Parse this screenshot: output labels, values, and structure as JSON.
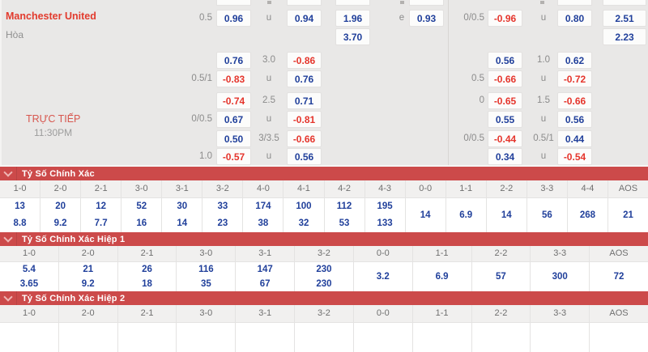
{
  "colors": {
    "band_red": "#cc4a4a",
    "odds_blue": "#21409b",
    "odds_red": "#e5352c",
    "team_red": "#e23b2e",
    "live_red": "#d7574f",
    "label_gray": "#8b8b8b"
  },
  "match": {
    "home_team": "Manchester United",
    "draw_label": "Hòa",
    "live_label": "TRỰC TIẾP",
    "time": "11:30PM"
  },
  "top_odds": {
    "rows": [
      {
        "cells": [
          {
            "col": "L1",
            "text": "0.5"
          },
          {
            "col": "B1",
            "text": "0.96",
            "color": "blue"
          },
          {
            "col": "L2",
            "text": "u"
          },
          {
            "col": "B2",
            "text": "0.94",
            "color": "blue"
          },
          {
            "col": "B3",
            "text": "1.96",
            "color": "blue"
          },
          {
            "col": "L3",
            "text": "e"
          },
          {
            "col": "B4",
            "text": "0.93",
            "color": "blue"
          },
          {
            "col": "RL1",
            "text": "0/0.5"
          },
          {
            "col": "RB1",
            "text": "-0.96",
            "color": "red"
          },
          {
            "col": "RL2",
            "text": "u"
          },
          {
            "col": "RB2",
            "text": "0.80",
            "color": "blue"
          },
          {
            "col": "RB3",
            "text": "2.51",
            "color": "blue"
          }
        ]
      },
      {
        "cells": [
          {
            "col": "B3",
            "text": "3.70",
            "color": "blue"
          },
          {
            "col": "RB3",
            "text": "2.23",
            "color": "blue"
          }
        ]
      },
      {
        "cells": [
          {
            "col": "B1",
            "text": "0.76",
            "color": "blue"
          },
          {
            "col": "L2",
            "text": "3.0"
          },
          {
            "col": "B2",
            "text": "-0.86",
            "color": "red"
          },
          {
            "col": "RB1",
            "text": "0.56",
            "color": "blue"
          },
          {
            "col": "RL2",
            "text": "1.0"
          },
          {
            "col": "RB2",
            "text": "0.62",
            "color": "blue"
          }
        ]
      },
      {
        "cells": [
          {
            "col": "L1",
            "text": "0.5/1"
          },
          {
            "col": "B1",
            "text": "-0.83",
            "color": "red"
          },
          {
            "col": "L2",
            "text": "u"
          },
          {
            "col": "B2",
            "text": "0.76",
            "color": "blue"
          },
          {
            "col": "RL1",
            "text": "0.5"
          },
          {
            "col": "RB1",
            "text": "-0.66",
            "color": "red"
          },
          {
            "col": "RL2",
            "text": "u"
          },
          {
            "col": "RB2",
            "text": "-0.72",
            "color": "red"
          }
        ]
      },
      {
        "cells": [
          {
            "col": "B1",
            "text": "-0.74",
            "color": "red"
          },
          {
            "col": "L2",
            "text": "2.5"
          },
          {
            "col": "B2",
            "text": "0.71",
            "color": "blue"
          },
          {
            "col": "RL1",
            "text": "0"
          },
          {
            "col": "RB1",
            "text": "-0.65",
            "color": "red"
          },
          {
            "col": "RL2",
            "text": "1.5"
          },
          {
            "col": "RB2",
            "text": "-0.66",
            "color": "red"
          }
        ]
      },
      {
        "cells": [
          {
            "col": "L1",
            "text": "0/0.5"
          },
          {
            "col": "B1",
            "text": "0.67",
            "color": "blue"
          },
          {
            "col": "L2",
            "text": "u"
          },
          {
            "col": "B2",
            "text": "-0.81",
            "color": "red"
          },
          {
            "col": "RB1",
            "text": "0.55",
            "color": "blue"
          },
          {
            "col": "RL2",
            "text": "u"
          },
          {
            "col": "RB2",
            "text": "0.56",
            "color": "blue"
          }
        ]
      },
      {
        "cells": [
          {
            "col": "B1",
            "text": "0.50",
            "color": "blue"
          },
          {
            "col": "L2",
            "text": "3/3.5"
          },
          {
            "col": "B2",
            "text": "-0.66",
            "color": "red"
          },
          {
            "col": "RL1",
            "text": "0/0.5"
          },
          {
            "col": "RB1",
            "text": "-0.44",
            "color": "red"
          },
          {
            "col": "RL2",
            "text": "0.5/1"
          },
          {
            "col": "RB2",
            "text": "0.44",
            "color": "blue"
          }
        ]
      },
      {
        "cells": [
          {
            "col": "L1",
            "text": "1.0"
          },
          {
            "col": "B1",
            "text": "-0.57",
            "color": "red"
          },
          {
            "col": "L2",
            "text": "u"
          },
          {
            "col": "B2",
            "text": "0.56",
            "color": "blue"
          },
          {
            "col": "RB1",
            "text": "0.34",
            "color": "blue"
          },
          {
            "col": "RL2",
            "text": "u"
          },
          {
            "col": "RB2",
            "text": "-0.54",
            "color": "red"
          }
        ]
      }
    ]
  },
  "score_tables": [
    {
      "title": "Tỷ Số Chính Xác",
      "headers": [
        "1-0",
        "2-0",
        "2-1",
        "3-0",
        "3-1",
        "3-2",
        "4-0",
        "4-1",
        "4-2",
        "4-3",
        "0-0",
        "1-1",
        "2-2",
        "3-3",
        "4-4",
        "AOS"
      ],
      "row1": [
        "13",
        "20",
        "12",
        "52",
        "30",
        "33",
        "174",
        "100",
        "112",
        "195"
      ],
      "row2": [
        "8.8",
        "9.2",
        "7.7",
        "16",
        "14",
        "23",
        "38",
        "32",
        "53",
        "133"
      ],
      "span_start": 10,
      "span_values": [
        "14",
        "6.9",
        "14",
        "56",
        "268",
        "21"
      ]
    },
    {
      "title": "Tỷ Số Chính Xác Hiệp 1",
      "headers": [
        "1-0",
        "2-0",
        "2-1",
        "3-0",
        "3-1",
        "3-2",
        "0-0",
        "1-1",
        "2-2",
        "3-3",
        "AOS"
      ],
      "row1": [
        "5.4",
        "21",
        "26",
        "116",
        "147",
        "230"
      ],
      "row2": [
        "3.65",
        "9.2",
        "18",
        "35",
        "67",
        "230"
      ],
      "span_start": 6,
      "span_values": [
        "3.2",
        "6.9",
        "57",
        "300",
        "72"
      ]
    },
    {
      "title": "Tỷ Số Chính Xác Hiệp 2",
      "headers": [
        "1-0",
        "2-0",
        "2-1",
        "3-0",
        "3-1",
        "3-2",
        "0-0",
        "1-1",
        "2-2",
        "3-3",
        "AOS"
      ],
      "row1": [],
      "row2": [],
      "span_start": 11,
      "span_values": []
    }
  ]
}
